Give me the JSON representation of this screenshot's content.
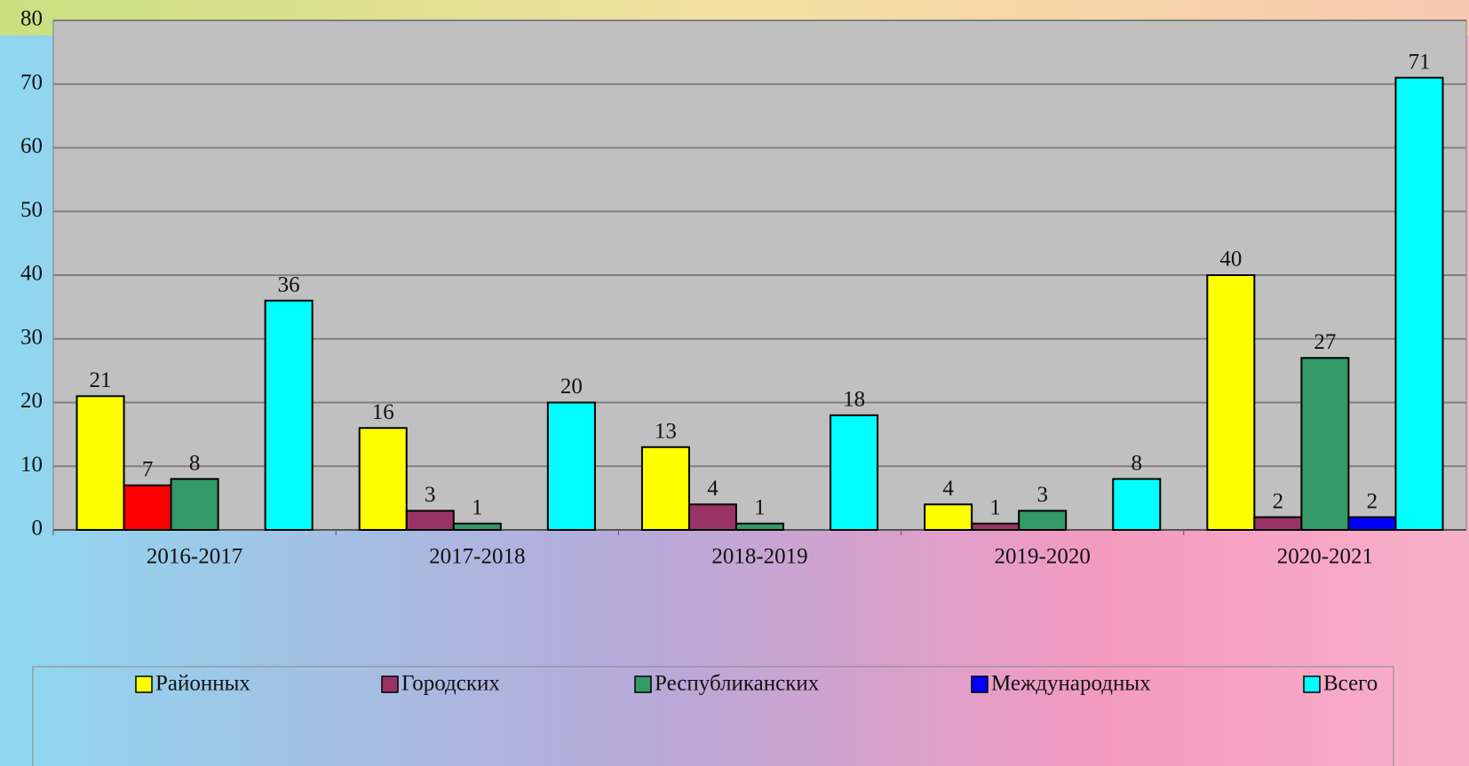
{
  "chart_data": {
    "type": "bar",
    "categories": [
      "2016-2017",
      "2017-2018",
      "2018-2019",
      "2019-2020",
      "2020-2021"
    ],
    "series": [
      {
        "name": "Районных",
        "color": "#ffff00",
        "values": [
          21,
          16,
          13,
          4,
          40
        ]
      },
      {
        "name": "Городских",
        "color": "#993366",
        "colors": [
          "#ff0000",
          "#993366",
          "#993366",
          "#993366",
          "#993366"
        ],
        "values": [
          7,
          3,
          4,
          1,
          2
        ]
      },
      {
        "name": "Республиканских",
        "color": "#339966",
        "values": [
          8,
          1,
          1,
          3,
          27
        ]
      },
      {
        "name": "Международных",
        "color": "#0000ff",
        "values": [
          0,
          0,
          0,
          0,
          2
        ]
      },
      {
        "name": "Всего",
        "color": "#00ffff",
        "values": [
          36,
          20,
          18,
          8,
          71
        ]
      }
    ],
    "ylim": [
      0,
      80
    ],
    "yticks": [
      0,
      10,
      20,
      30,
      40,
      50,
      60,
      70,
      80
    ],
    "grid": true,
    "legend": "bottom"
  }
}
